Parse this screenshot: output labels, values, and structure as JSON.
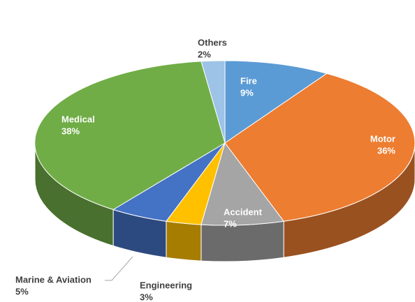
{
  "chart_data": {
    "type": "pie",
    "categories": [
      "Fire",
      "Motor",
      "Accident",
      "Engineering",
      "Marine & Aviation",
      "Medical",
      "Others"
    ],
    "values": [
      9,
      36,
      7,
      3,
      5,
      38,
      2
    ],
    "value_labels": [
      "9%",
      "36%",
      "7%",
      "3%",
      "5%",
      "38%",
      "2%"
    ],
    "colors": [
      "#5b9bd5",
      "#ed7d31",
      "#a5a5a5",
      "#ffc000",
      "#4472c4",
      "#70ad47",
      "#9dc3e6"
    ]
  }
}
